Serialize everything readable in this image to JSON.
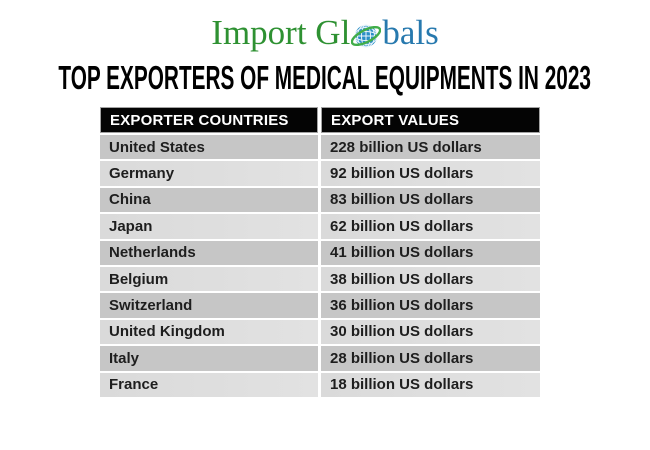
{
  "logo": {
    "text_left": "Import Gl",
    "text_right": "bals",
    "green_color": "#2e9132",
    "blue_color": "#2779ae",
    "globe_color": "#2b8fc7",
    "swoosh_color": "#41ad49"
  },
  "title": "TOP EXPORTERS OF MEDICAL EQUIPMENTS IN 2023",
  "table": {
    "headers": [
      "EXPORTER COUNTRIES",
      "EXPORT VALUES"
    ],
    "rows": [
      {
        "country": "United States",
        "value": "228 billion US dollars"
      },
      {
        "country": "Germany",
        "value": "92 billion US dollars"
      },
      {
        "country": "China",
        "value": "83 billion US dollars"
      },
      {
        "country": "Japan",
        "value": "62 billion US dollars"
      },
      {
        "country": "Netherlands",
        "value": "41 billion US dollars"
      },
      {
        "country": "Belgium",
        "value": "38 billion US dollars"
      },
      {
        "country": "Switzerland",
        "value": "36 billion US dollars"
      },
      {
        "country": "United Kingdom",
        "value": "30 billion US dollars"
      },
      {
        "country": "Italy",
        "value": "28 billion US dollars"
      },
      {
        "country": "France",
        "value": "18 billion US dollars"
      }
    ],
    "colors": {
      "header_bg": "#040404",
      "header_text": "#ffffff",
      "row_dark": "#c6c6c6",
      "row_light": "#dedede",
      "cell_text": "#1e1e1e"
    }
  },
  "chart_data": {
    "type": "table",
    "title": "TOP EXPORTERS OF MEDICAL EQUIPMENTS IN 2023",
    "columns": [
      "EXPORTER COUNTRIES",
      "EXPORT VALUES"
    ],
    "categories": [
      "United States",
      "Germany",
      "China",
      "Japan",
      "Netherlands",
      "Belgium",
      "Switzerland",
      "United Kingdom",
      "Italy",
      "France"
    ],
    "values": [
      228,
      92,
      83,
      62,
      41,
      38,
      36,
      30,
      28,
      18
    ],
    "unit": "billion US dollars",
    "year": "2023"
  }
}
